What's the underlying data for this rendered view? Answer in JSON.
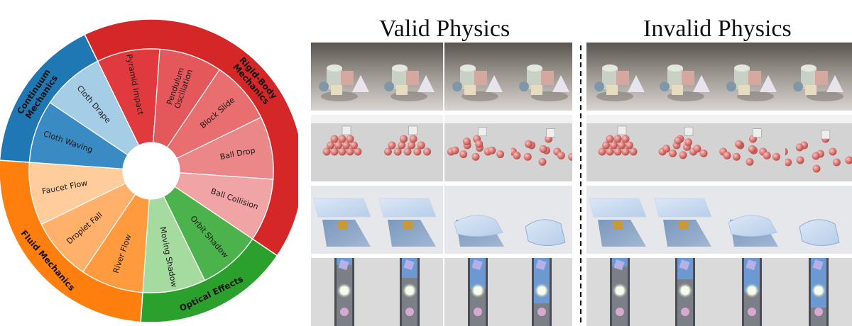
{
  "titles": {
    "valid": "Valid Physics",
    "invalid": "Invalid Physics"
  },
  "sunburst": {
    "categories": [
      {
        "name": "Rigid-Body Mechanics",
        "lines": [
          "Rigid-Body",
          "Mechanics"
        ],
        "color": "#d62728",
        "innerColor": "#e8474b",
        "tasks": [
          {
            "label": "Pyramid Impact",
            "lines": [
              "Pyramid Impact"
            ],
            "color": "#e03a3e"
          },
          {
            "label": "Pendulum Oscillation",
            "lines": [
              "Pendulum",
              "Oscillation"
            ],
            "color": "#e4575a"
          },
          {
            "label": "Block Slide",
            "lines": [
              "Block Slide"
            ],
            "color": "#e86e70"
          },
          {
            "label": "Ball Drop",
            "lines": [
              "Ball Drop"
            ],
            "color": "#ec8789"
          },
          {
            "label": "Ball Collision",
            "lines": [
              "Ball Collision"
            ],
            "color": "#f0a4a6"
          }
        ]
      },
      {
        "name": "Optical Effects",
        "lines": [
          "Optical Effects"
        ],
        "color": "#2ca02c",
        "tasks": [
          {
            "label": "Orbit Shadow",
            "lines": [
              "Orbit Shadow"
            ],
            "color": "#4cb24c"
          },
          {
            "label": "Moving Shadow",
            "lines": [
              "Moving Shadow"
            ],
            "color": "#a6dba0"
          }
        ]
      },
      {
        "name": "Fluid Mechanics",
        "lines": [
          "Fluid Mechanics"
        ],
        "color": "#ff7f0e",
        "tasks": [
          {
            "label": "River Flow",
            "lines": [
              "River Flow"
            ],
            "color": "#ff9a3f"
          },
          {
            "label": "Droplet Fall",
            "lines": [
              "Droplet Fall"
            ],
            "color": "#ffb06b"
          },
          {
            "label": "Faucet Flow",
            "lines": [
              "Faucet Flow"
            ],
            "color": "#ffcc9c"
          }
        ]
      },
      {
        "name": "Continuum Mechanics",
        "lines": [
          "Continuum",
          "Mechanics"
        ],
        "color": "#1f77b4",
        "tasks": [
          {
            "label": "Cloth Waving",
            "lines": [
              "Cloth Waving"
            ],
            "color": "#3a8bc4"
          },
          {
            "label": "Cloth Drape",
            "lines": [
              "Cloth Drape"
            ],
            "color": "#a6cde6"
          }
        ]
      }
    ]
  }
}
